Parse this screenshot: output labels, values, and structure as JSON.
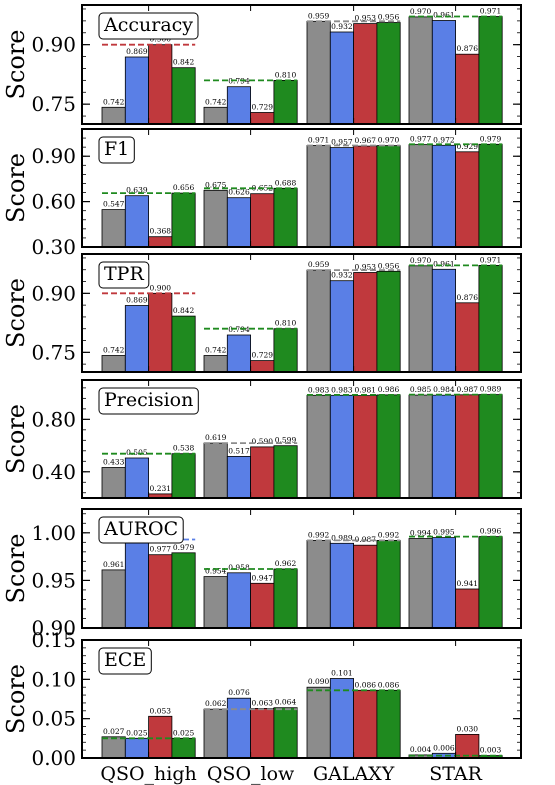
{
  "categories": [
    "QSO_high",
    "QSO_low",
    "GALAXY",
    "STAR"
  ],
  "colors": [
    "#8c8c8c",
    "#5a7fe6",
    "#c0393d",
    "#1f8a1f"
  ],
  "chart_data": [
    {
      "type": "bar",
      "title": "Accuracy",
      "ylabel": "Score",
      "ylim": [
        0.7,
        1.0
      ],
      "yticks": [
        {
          "v": 0.75,
          "label": "0.75"
        },
        {
          "v": 0.9,
          "label": "0.90"
        }
      ],
      "categories": [
        "QSO_high",
        "QSO_low",
        "GALAXY",
        "STAR"
      ],
      "series": [
        {
          "values": [
            0.742,
            0.742,
            0.959,
            0.97
          ],
          "labels": [
            "0.742",
            "0.742",
            "0.959",
            "0.970"
          ]
        },
        {
          "values": [
            0.869,
            0.794,
            0.932,
            0.961
          ],
          "labels": [
            "0.869",
            "0.794",
            "0.932",
            "0.961"
          ]
        },
        {
          "values": [
            0.9,
            0.729,
            0.953,
            0.876
          ],
          "labels": [
            "0.900",
            "0.729",
            "0.953",
            "0.876"
          ]
        },
        {
          "values": [
            0.842,
            0.81,
            0.956,
            0.971
          ],
          "labels": [
            "0.842",
            "0.810",
            "0.956",
            "0.971"
          ]
        }
      ],
      "best_lines": [
        {
          "value": 0.9,
          "color": "#c0393d"
        },
        {
          "value": 0.81,
          "color": "#1f8a1f"
        },
        {
          "value": 0.959,
          "color": "#8c8c8c"
        },
        {
          "value": 0.971,
          "color": "#1f8a1f"
        }
      ]
    },
    {
      "type": "bar",
      "title": "F1",
      "ylabel": "Score",
      "ylim": [
        0.3,
        1.08
      ],
      "yticks": [
        {
          "v": 0.3,
          "label": "0.30"
        },
        {
          "v": 0.6,
          "label": "0.60"
        },
        {
          "v": 0.9,
          "label": "0.90"
        }
      ],
      "categories": [
        "QSO_high",
        "QSO_low",
        "GALAXY",
        "STAR"
      ],
      "series": [
        {
          "values": [
            0.547,
            0.675,
            0.971,
            0.977
          ],
          "labels": [
            "0.547",
            "0.675",
            "0.971",
            "0.977"
          ]
        },
        {
          "values": [
            0.639,
            0.626,
            0.957,
            0.972
          ],
          "labels": [
            "0.639",
            "0.626",
            "0.957",
            "0.972"
          ]
        },
        {
          "values": [
            0.368,
            0.652,
            0.967,
            0.929
          ],
          "labels": [
            "0.368",
            "0.652",
            "0.967",
            "0.929"
          ]
        },
        {
          "values": [
            0.656,
            0.688,
            0.97,
            0.979
          ],
          "labels": [
            "0.656",
            "0.688",
            "0.970",
            "0.979"
          ]
        }
      ],
      "best_lines": [
        {
          "value": 0.656,
          "color": "#1f8a1f"
        },
        {
          "value": 0.688,
          "color": "#1f8a1f"
        },
        {
          "value": 0.971,
          "color": "#8c8c8c"
        },
        {
          "value": 0.979,
          "color": "#1f8a1f"
        }
      ]
    },
    {
      "type": "bar",
      "title": "TPR",
      "ylabel": "Score",
      "ylim": [
        0.7,
        1.0
      ],
      "yticks": [
        {
          "v": 0.75,
          "label": "0.75"
        },
        {
          "v": 0.9,
          "label": "0.90"
        }
      ],
      "categories": [
        "QSO_high",
        "QSO_low",
        "GALAXY",
        "STAR"
      ],
      "series": [
        {
          "values": [
            0.742,
            0.742,
            0.959,
            0.97
          ],
          "labels": [
            "0.742",
            "0.742",
            "0.959",
            "0.970"
          ]
        },
        {
          "values": [
            0.869,
            0.794,
            0.932,
            0.961
          ],
          "labels": [
            "0.869",
            "0.794",
            "0.932",
            "0.961"
          ]
        },
        {
          "values": [
            0.9,
            0.729,
            0.953,
            0.876
          ],
          "labels": [
            "0.900",
            "0.729",
            "0.953",
            "0.876"
          ]
        },
        {
          "values": [
            0.842,
            0.81,
            0.956,
            0.971
          ],
          "labels": [
            "0.842",
            "0.810",
            "0.956",
            "0.971"
          ]
        }
      ],
      "best_lines": [
        {
          "value": 0.9,
          "color": "#c0393d"
        },
        {
          "value": 0.81,
          "color": "#1f8a1f"
        },
        {
          "value": 0.959,
          "color": "#8c8c8c"
        },
        {
          "value": 0.971,
          "color": "#1f8a1f"
        }
      ]
    },
    {
      "type": "bar",
      "title": "Precision",
      "ylabel": "Score",
      "ylim": [
        0.2,
        1.1
      ],
      "yticks": [
        {
          "v": 0.4,
          "label": "0.40"
        },
        {
          "v": 0.8,
          "label": "0.80"
        }
      ],
      "categories": [
        "QSO_high",
        "QSO_low",
        "GALAXY",
        "STAR"
      ],
      "series": [
        {
          "values": [
            0.433,
            0.619,
            0.983,
            0.985
          ],
          "labels": [
            "0.433",
            "0.619",
            "0.983",
            "0.985"
          ]
        },
        {
          "values": [
            0.505,
            0.517,
            0.983,
            0.984
          ],
          "labels": [
            "0.505",
            "0.517",
            "0.983",
            "0.984"
          ]
        },
        {
          "values": [
            0.231,
            0.59,
            0.981,
            0.987
          ],
          "labels": [
            "0.231",
            "0.590",
            "0.981",
            "0.987"
          ]
        },
        {
          "values": [
            0.538,
            0.599,
            0.986,
            0.989
          ],
          "labels": [
            "0.538",
            "0.599",
            "0.986",
            "0.989"
          ]
        }
      ],
      "best_lines": [
        {
          "value": 0.538,
          "color": "#1f8a1f"
        },
        {
          "value": 0.619,
          "color": "#8c8c8c"
        },
        {
          "value": 0.986,
          "color": "#1f8a1f"
        },
        {
          "value": 0.989,
          "color": "#1f8a1f"
        }
      ]
    },
    {
      "type": "bar",
      "title": "AUROC",
      "ylabel": "Score",
      "ylim": [
        0.9,
        1.025
      ],
      "yticks": [
        {
          "v": 0.9,
          "label": "0.90"
        },
        {
          "v": 0.95,
          "label": "0.95"
        },
        {
          "v": 1.0,
          "label": "1.00"
        }
      ],
      "categories": [
        "QSO_high",
        "QSO_low",
        "GALAXY",
        "STAR"
      ],
      "series": [
        {
          "values": [
            0.961,
            0.954,
            0.992,
            0.994
          ],
          "labels": [
            "0.961",
            "0.954",
            "0.992",
            "0.994"
          ]
        },
        {
          "values": [
            0.993,
            0.958,
            0.989,
            0.995
          ],
          "labels": [
            "",
            "0.958",
            "0.989",
            "0.995"
          ]
        },
        {
          "values": [
            0.977,
            0.947,
            0.987,
            0.941
          ],
          "labels": [
            "0.977",
            "0.947",
            "0.987",
            "0.941"
          ]
        },
        {
          "values": [
            0.979,
            0.962,
            0.992,
            0.996
          ],
          "labels": [
            "0.979",
            "0.962",
            "0.992",
            "0.996"
          ]
        }
      ],
      "best_lines": [
        {
          "value": 0.993,
          "color": "#5a7fe6"
        },
        {
          "value": 0.962,
          "color": "#1f8a1f"
        },
        {
          "value": 0.992,
          "color": "#8c8c8c"
        },
        {
          "value": 0.996,
          "color": "#1f8a1f"
        }
      ]
    },
    {
      "type": "bar",
      "title": "ECE",
      "ylabel": "Score",
      "ylim": [
        0.0,
        0.15
      ],
      "yticks": [
        {
          "v": 0.0,
          "label": "0.00"
        },
        {
          "v": 0.05,
          "label": "0.05"
        },
        {
          "v": 0.1,
          "label": "0.10"
        },
        {
          "v": 0.15,
          "label": "0.15"
        }
      ],
      "categories": [
        "QSO_high",
        "QSO_low",
        "GALAXY",
        "STAR"
      ],
      "series": [
        {
          "values": [
            0.027,
            0.062,
            0.09,
            0.004
          ],
          "labels": [
            "0.027",
            "0.062",
            "0.090",
            "0.004"
          ]
        },
        {
          "values": [
            0.025,
            0.076,
            0.101,
            0.006
          ],
          "labels": [
            "0.025",
            "0.076",
            "0.101",
            "0.006"
          ]
        },
        {
          "values": [
            0.053,
            0.063,
            0.086,
            0.03
          ],
          "labels": [
            "0.053",
            "0.063",
            "0.086",
            "0.030"
          ]
        },
        {
          "values": [
            0.025,
            0.064,
            0.086,
            0.003
          ],
          "labels": [
            "0.025",
            "0.064",
            "0.086",
            "0.003"
          ]
        }
      ],
      "best_lines": [
        {
          "value": 0.025,
          "color": "#1f8a1f"
        },
        {
          "value": 0.062,
          "color": "#8c8c8c"
        },
        {
          "value": 0.086,
          "color": "#1f8a1f"
        },
        {
          "value": 0.003,
          "color": "#1f8a1f"
        }
      ]
    }
  ]
}
